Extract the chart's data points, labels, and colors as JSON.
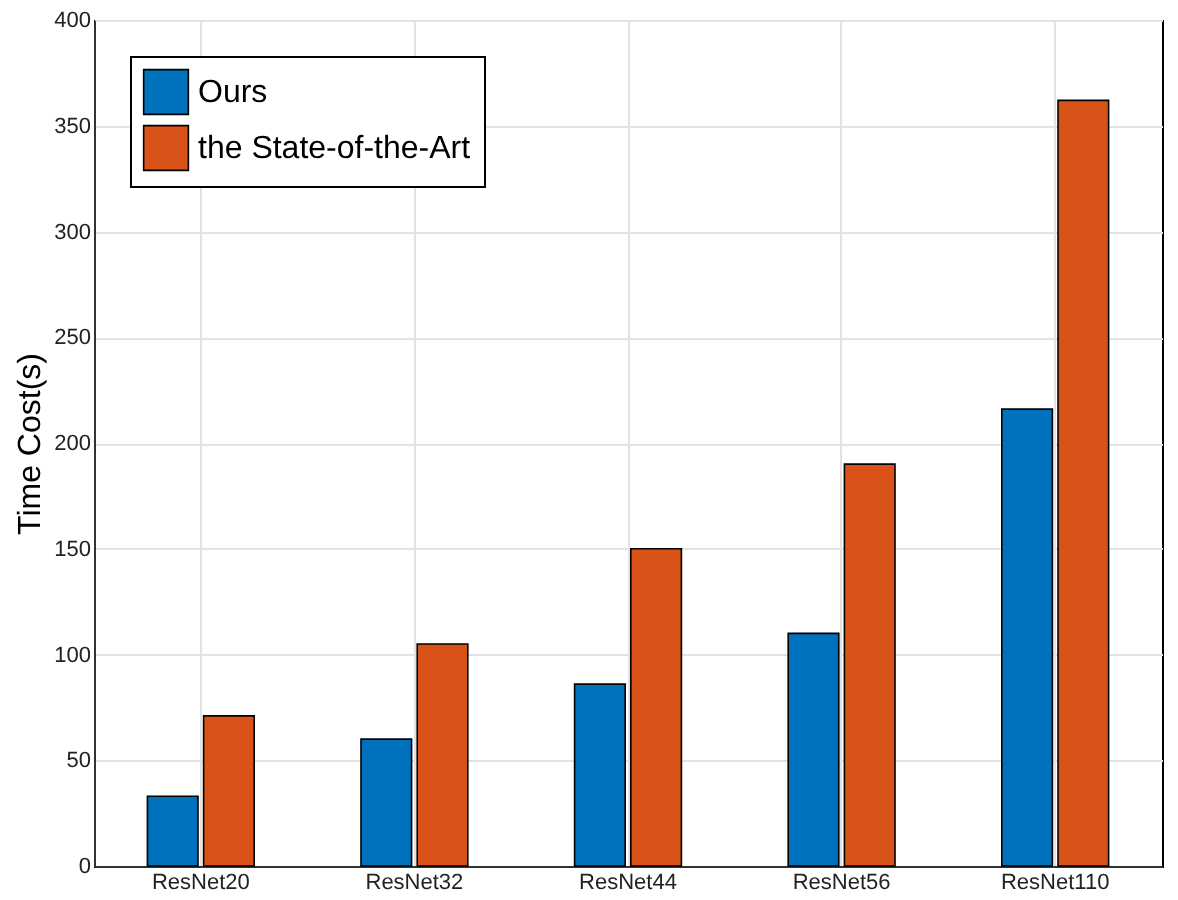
{
  "chart_data": {
    "type": "bar",
    "ylabel": "Time Cost(s)",
    "categories": [
      "ResNet20",
      "ResNet32",
      "ResNet44",
      "ResNet56",
      "ResNet110"
    ],
    "series": [
      {
        "name": "Ours",
        "color": "#0072bd",
        "values": [
          33,
          60,
          86,
          110,
          216
        ]
      },
      {
        "name": "the State-of-the-Art",
        "color": "#d95319",
        "values": [
          71,
          105,
          150,
          190,
          362
        ]
      }
    ],
    "ylim": [
      0,
      400
    ],
    "yticks": [
      0,
      50,
      100,
      150,
      200,
      250,
      300,
      350,
      400
    ],
    "grid": true,
    "legend": "top left"
  }
}
